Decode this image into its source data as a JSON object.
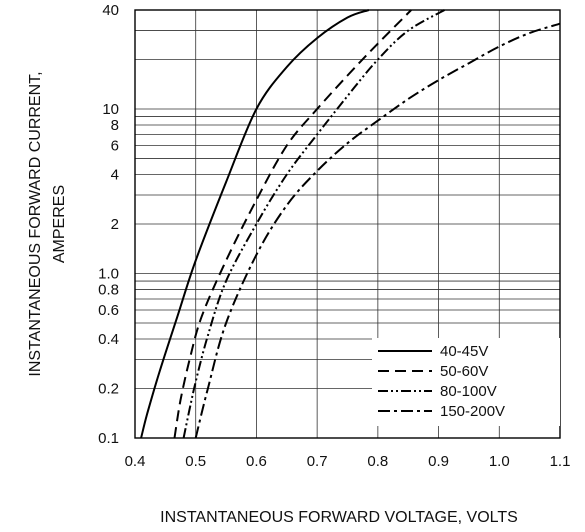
{
  "chart_data": {
    "type": "line",
    "x_scale": "linear",
    "y_scale": "log",
    "xlim": [
      0.4,
      1.1
    ],
    "ylim": [
      0.1,
      40
    ],
    "x_ticks": [
      0.4,
      0.5,
      0.6,
      0.7,
      0.8,
      0.9,
      1.0,
      1.1
    ],
    "x_tick_labels": [
      "0.4",
      "0.5",
      "0.6",
      "0.7",
      "0.8",
      "0.9",
      "1.0",
      "1.1"
    ],
    "y_ticks": [
      0.1,
      0.2,
      0.4,
      0.6,
      0.8,
      1.0,
      2,
      4,
      6,
      8,
      10,
      40
    ],
    "y_tick_labels": [
      "0.1",
      "0.2",
      "0.4",
      "0.6",
      "0.8",
      "1.0",
      "2",
      "4",
      "6",
      "8",
      "10",
      "40"
    ],
    "xlabel": "INSTANTANEOUS FORWARD VOLTAGE, VOLTS",
    "ylabel_line1": "INSTANTANEOUS FORWARD CURRENT,",
    "ylabel_line2": "AMPERES",
    "grid": true,
    "legend_position": "bottom-right",
    "series": [
      {
        "name": "40-45V",
        "dash": "solid",
        "x": [
          0.41,
          0.42,
          0.44,
          0.47,
          0.5,
          0.55,
          0.6,
          0.65,
          0.7,
          0.75,
          0.785
        ],
        "y": [
          0.1,
          0.14,
          0.25,
          0.55,
          1.2,
          3.6,
          10,
          18,
          27,
          36,
          40
        ]
      },
      {
        "name": "50-60V",
        "dash": "dash",
        "x": [
          0.465,
          0.475,
          0.49,
          0.51,
          0.55,
          0.6,
          0.65,
          0.7,
          0.75,
          0.8,
          0.855
        ],
        "y": [
          0.1,
          0.17,
          0.3,
          0.55,
          1.2,
          2.8,
          6,
          10,
          16,
          25,
          40
        ]
      },
      {
        "name": "80-100V",
        "dash": "dash-dot-dot",
        "x": [
          0.48,
          0.49,
          0.5,
          0.52,
          0.55,
          0.6,
          0.65,
          0.7,
          0.75,
          0.8,
          0.85,
          0.91
        ],
        "y": [
          0.1,
          0.15,
          0.22,
          0.42,
          0.9,
          2,
          4,
          7,
          12,
          20,
          30,
          40
        ]
      },
      {
        "name": "150-200V",
        "dash": "dash-dot",
        "x": [
          0.5,
          0.52,
          0.55,
          0.6,
          0.65,
          0.7,
          0.75,
          0.8,
          0.85,
          0.9,
          0.95,
          1.0,
          1.05,
          1.1
        ],
        "y": [
          0.1,
          0.2,
          0.5,
          1.3,
          2.6,
          4.2,
          6.2,
          8.5,
          11.5,
          15,
          19,
          24,
          29,
          33
        ]
      }
    ]
  }
}
